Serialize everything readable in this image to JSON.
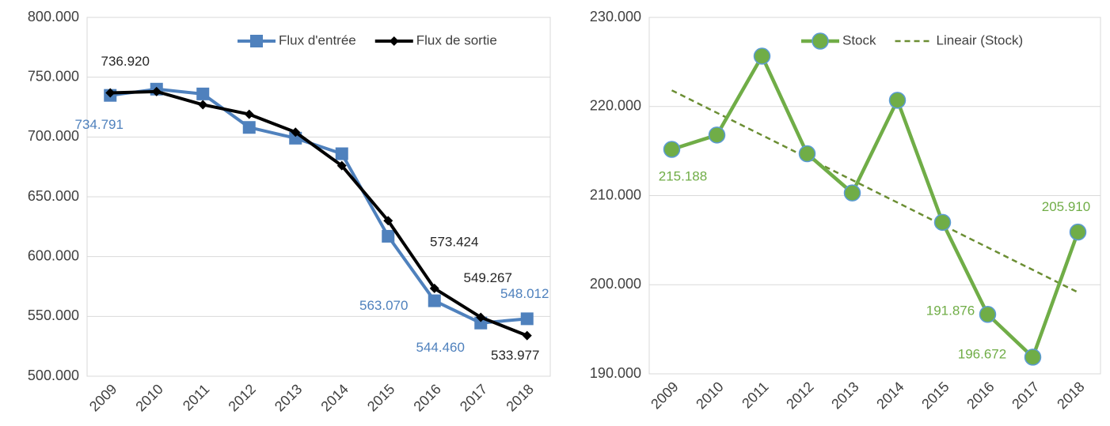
{
  "chart_data": [
    {
      "type": "line",
      "categories": [
        "2009",
        "2010",
        "2011",
        "2012",
        "2013",
        "2014",
        "2015",
        "2016",
        "2017",
        "2018"
      ],
      "ylim": [
        500000,
        800000
      ],
      "yticks": [
        {
          "value": 500000,
          "label": "500.000"
        },
        {
          "value": 550000,
          "label": "550.000"
        },
        {
          "value": 600000,
          "label": "600.000"
        },
        {
          "value": 650000,
          "label": "650.000"
        },
        {
          "value": 700000,
          "label": "700.000"
        },
        {
          "value": 750000,
          "label": "750.000"
        },
        {
          "value": 800000,
          "label": "800.000"
        }
      ],
      "grid": true,
      "legend": "top-right",
      "series": [
        {
          "name": "Flux d'entrée",
          "color": "#4f81bd",
          "marker": "square",
          "values": [
            734791,
            740000,
            736000,
            708000,
            699000,
            686000,
            617000,
            563070,
            544460,
            548012
          ],
          "value_labels": [
            "734.791",
            null,
            null,
            null,
            null,
            null,
            null,
            "563.070",
            "544.460",
            "548.012"
          ]
        },
        {
          "name": "Flux de sortie",
          "color": "#000000",
          "marker": "diamond",
          "values": [
            736920,
            738000,
            727000,
            719000,
            704000,
            676000,
            630000,
            573424,
            549267,
            533977
          ],
          "value_labels": [
            "736.920",
            null,
            null,
            null,
            null,
            null,
            null,
            "573.424",
            "549.267",
            "533.977"
          ]
        }
      ]
    },
    {
      "type": "line",
      "categories": [
        "2009",
        "2010",
        "2011",
        "2012",
        "2013",
        "2014",
        "2015",
        "2016",
        "2017",
        "2018"
      ],
      "ylim": [
        190000,
        230000
      ],
      "yticks": [
        {
          "value": 190000,
          "label": "190.000"
        },
        {
          "value": 200000,
          "label": "200.000"
        },
        {
          "value": 210000,
          "label": "210.000"
        },
        {
          "value": 220000,
          "label": "220.000"
        },
        {
          "value": 230000,
          "label": "230.000"
        }
      ],
      "grid": true,
      "legend": "top-right",
      "series": [
        {
          "name": "Stock",
          "color": "#70ad47",
          "marker": "circle",
          "values": [
            215188,
            216800,
            225650,
            214700,
            210300,
            220700,
            207000,
            196672,
            191876,
            205910
          ],
          "value_labels": [
            "215.188",
            null,
            null,
            null,
            null,
            null,
            null,
            "196.672",
            "191.876",
            "205.910"
          ]
        }
      ],
      "trendline": {
        "name": "Lineair (Stock)",
        "color": "#6b8e33",
        "series": 0
      }
    }
  ]
}
